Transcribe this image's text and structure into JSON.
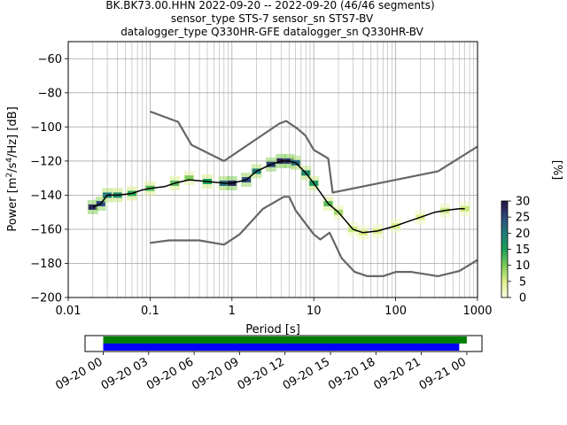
{
  "title_lines": [
    "BK.BK73.00.HHN   2022-09-20 -- 2022-09-20  (46/46 segments)",
    "sensor_type STS-7 sensor_sn STS7-BV",
    "datalogger_type Q330HR-GFE datalogger_sn Q330HR-BV"
  ],
  "chart_data": [
    {
      "type": "heatmap",
      "title": "BK.BK73.00.HHN   2022-09-20 -- 2022-09-20  (46/46 segments)",
      "xlabel": "Period [s]",
      "ylabel": "Power [m²/s⁴/Hz] [dB]",
      "xscale": "log",
      "xlim": [
        0.01,
        1000
      ],
      "ylim": [
        -200,
        -50
      ],
      "grid": true,
      "x_ticks": [
        {
          "value": 0.01,
          "label": "0.01"
        },
        {
          "value": 0.1,
          "label": "0.1"
        },
        {
          "value": 1,
          "label": "1"
        },
        {
          "value": 10,
          "label": "10"
        },
        {
          "value": 100,
          "label": "100"
        },
        {
          "value": 1000,
          "label": "1000"
        }
      ],
      "y_ticks": [
        {
          "value": -60,
          "label": "−60"
        },
        {
          "value": -80,
          "label": "−80"
        },
        {
          "value": -100,
          "label": "−100"
        },
        {
          "value": -120,
          "label": "−120"
        },
        {
          "value": -140,
          "label": "−140"
        },
        {
          "value": -160,
          "label": "−160"
        },
        {
          "value": -180,
          "label": "−180"
        },
        {
          "value": -200,
          "label": "−200"
        }
      ],
      "colorbar": {
        "label": "[%]",
        "min": 0,
        "max": 30,
        "ticks": [
          {
            "value": 0,
            "label": "0"
          },
          {
            "value": 5,
            "label": "5"
          },
          {
            "value": 10,
            "label": "10"
          },
          {
            "value": 15,
            "label": "15"
          },
          {
            "value": 20,
            "label": "20"
          },
          {
            "value": 25,
            "label": "25"
          },
          {
            "value": 30,
            "label": "30"
          }
        ]
      },
      "series": [
        {
          "role": "mode-curve",
          "color": "#000000",
          "x": [
            0.02,
            0.025,
            0.03,
            0.04,
            0.06,
            0.08,
            0.1,
            0.15,
            0.2,
            0.3,
            0.5,
            0.8,
            1,
            1.5,
            2,
            3,
            4,
            5,
            6,
            8,
            10,
            15,
            20,
            30,
            40,
            60,
            100,
            150,
            200,
            300,
            400,
            600,
            700
          ],
          "y": [
            -147,
            -145,
            -140,
            -140,
            -139,
            -137,
            -136,
            -135,
            -133,
            -131,
            -132,
            -133,
            -133,
            -131,
            -126,
            -122,
            -120,
            -120,
            -121,
            -127,
            -133,
            -145,
            -150,
            -160,
            -162,
            -161,
            -158,
            -155,
            -153,
            -150,
            -149,
            -148,
            -148
          ]
        },
        {
          "role": "high-noise-model",
          "color": "#666666",
          "x": [
            0.1,
            0.22,
            0.32,
            0.8,
            3.8,
            4.6,
            6.3,
            7.9,
            10,
            15,
            17,
            330,
            1000
          ],
          "y": [
            -91,
            -97,
            -110.5,
            -120,
            -98,
            -96.5,
            -101,
            -105,
            -113.5,
            -118.5,
            -138.5,
            -126,
            -111.5
          ]
        },
        {
          "role": "low-noise-model",
          "color": "#666666",
          "x": [
            0.1,
            0.17,
            0.4,
            0.8,
            1.24,
            2.4,
            4.3,
            5,
            6,
            10,
            12,
            15.6,
            21.9,
            31.6,
            45,
            70,
            101,
            154,
            328,
            600,
            1000
          ],
          "y": [
            -168,
            -166.5,
            -166.5,
            -169,
            -163,
            -148,
            -141,
            -141,
            -149,
            -163,
            -166,
            -162,
            -177,
            -185,
            -187.5,
            -187.5,
            -185,
            -185,
            -187.5,
            -184.5,
            -178
          ]
        }
      ],
      "cells": [
        {
          "x": 0.02,
          "y": -147,
          "value": 28
        },
        {
          "x": 0.025,
          "y": -145,
          "value": 25
        },
        {
          "x": 0.03,
          "y": -140,
          "value": 20
        },
        {
          "x": 0.04,
          "y": -140,
          "value": 18
        },
        {
          "x": 0.06,
          "y": -139,
          "value": 14
        },
        {
          "x": 0.1,
          "y": -136,
          "value": 12
        },
        {
          "x": 0.2,
          "y": -133,
          "value": 12
        },
        {
          "x": 0.3,
          "y": -130,
          "value": 10
        },
        {
          "x": 0.5,
          "y": -132,
          "value": 15
        },
        {
          "x": 0.8,
          "y": -133,
          "value": 22
        },
        {
          "x": 1,
          "y": -133,
          "value": 28
        },
        {
          "x": 1.5,
          "y": -131,
          "value": 25
        },
        {
          "x": 2,
          "y": -126,
          "value": 20
        },
        {
          "x": 3,
          "y": -122,
          "value": 26
        },
        {
          "x": 4,
          "y": -120,
          "value": 29
        },
        {
          "x": 5,
          "y": -120,
          "value": 27
        },
        {
          "x": 6,
          "y": -121,
          "value": 22
        },
        {
          "x": 8,
          "y": -127,
          "value": 18
        },
        {
          "x": 10,
          "y": -133,
          "value": 16
        },
        {
          "x": 15,
          "y": -145,
          "value": 12
        },
        {
          "x": 20,
          "y": -150,
          "value": 8
        },
        {
          "x": 30,
          "y": -160,
          "value": 6
        },
        {
          "x": 40,
          "y": -162,
          "value": 5
        },
        {
          "x": 60,
          "y": -161,
          "value": 5
        },
        {
          "x": 100,
          "y": -158,
          "value": 5
        },
        {
          "x": 200,
          "y": -153,
          "value": 5
        },
        {
          "x": 400,
          "y": -149,
          "value": 6
        },
        {
          "x": 700,
          "y": -148,
          "value": 6
        }
      ]
    },
    {
      "type": "bar",
      "title": "",
      "xlabel": "",
      "ylabel": "",
      "x_ticks": [
        {
          "value": 0,
          "label": "09-20 00"
        },
        {
          "value": 3,
          "label": "09-20 03"
        },
        {
          "value": 6,
          "label": "09-20 06"
        },
        {
          "value": 9,
          "label": "09-20 09"
        },
        {
          "value": 12,
          "label": "09-20 12"
        },
        {
          "value": 15,
          "label": "09-20 15"
        },
        {
          "value": 18,
          "label": "09-20 18"
        },
        {
          "value": 21,
          "label": "09-20 21"
        },
        {
          "value": 24,
          "label": "09-21 00"
        }
      ],
      "xlim": [
        -1.2,
        25
      ],
      "series": [
        {
          "role": "data-available",
          "color": "#008000",
          "start": 0,
          "end": 24.0
        },
        {
          "role": "psd-computed",
          "color": "#0000ff",
          "start": 0,
          "end": 23.5
        }
      ]
    }
  ]
}
